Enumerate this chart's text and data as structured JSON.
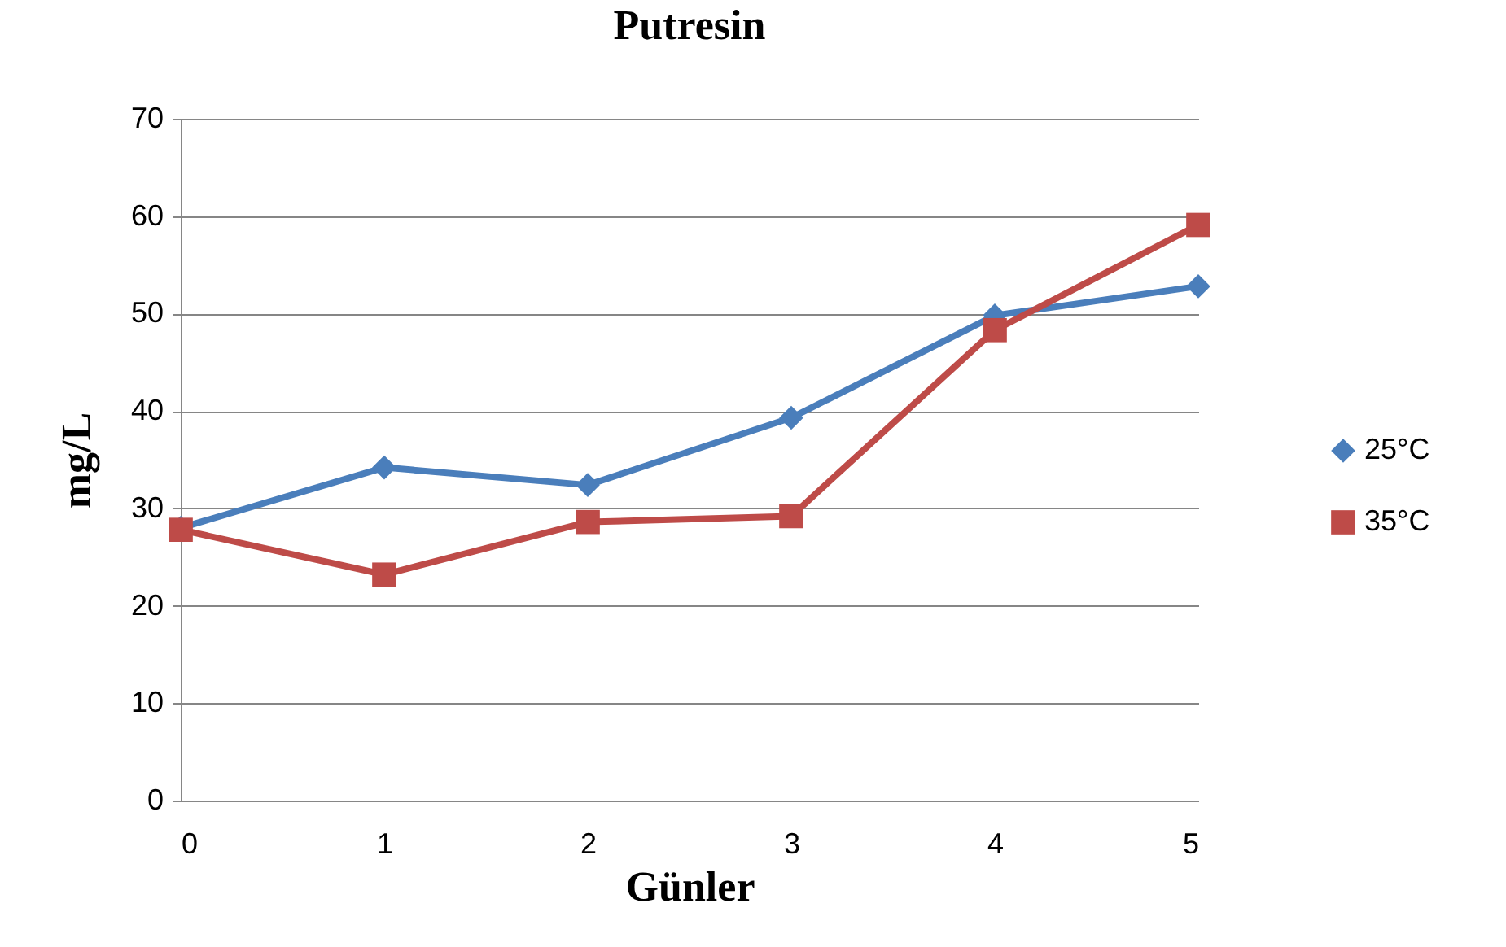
{
  "chart_data": {
    "type": "line",
    "title": "Putresin",
    "xlabel": "Günler",
    "ylabel": "mg/L",
    "x": [
      0,
      1,
      2,
      3,
      4,
      5
    ],
    "xlim": [
      0,
      5
    ],
    "xticks": [
      0,
      1,
      2,
      3,
      4,
      5
    ],
    "ylim": [
      0,
      70
    ],
    "yticks": [
      0,
      10,
      20,
      30,
      40,
      50,
      60,
      70
    ],
    "grid": "y",
    "legend": "right",
    "line_style": "solid",
    "series": [
      {
        "name": "25°C",
        "color": "#4a7ebb",
        "marker": "diamond",
        "values": [
          28,
          34.2,
          32.4,
          39.3,
          49.8,
          52.8
        ]
      },
      {
        "name": "35°C",
        "color": "#be4b48",
        "marker": "square",
        "values": [
          27.8,
          23.2,
          28.6,
          29.2,
          48.3,
          59.1
        ]
      }
    ]
  }
}
